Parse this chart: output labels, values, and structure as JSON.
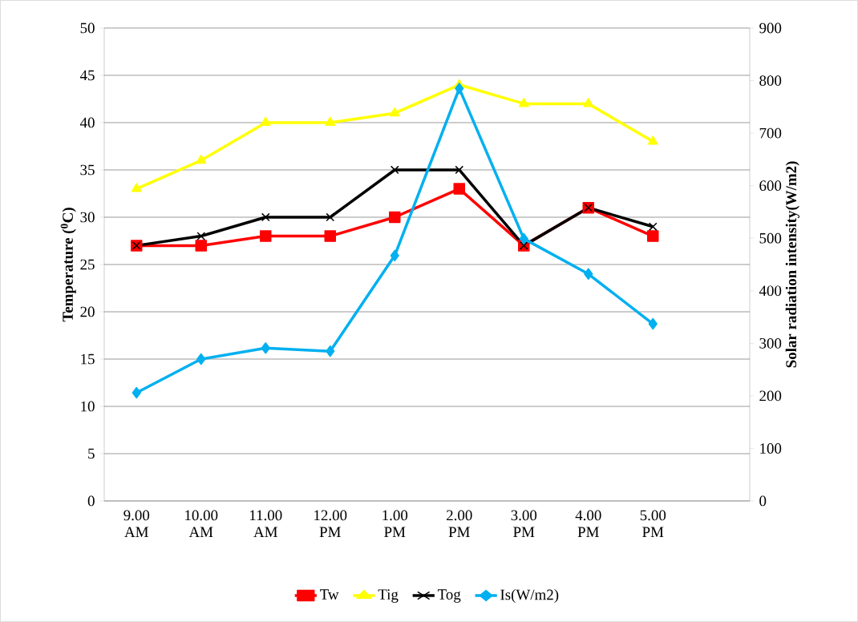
{
  "chart_data": {
    "type": "line",
    "ylabel": "Temperature ($^{0}$C)",
    "y2label": "Solar radiation intensity(W/m2)",
    "categories": [
      "9.00 AM",
      "10.00 AM",
      "11.00 AM",
      "12.00 PM",
      "1.00 PM",
      "2.00 PM",
      "3.00 PM",
      "4.00 PM",
      "5.00 PM",
      null
    ],
    "series": [
      {
        "name": "Tw",
        "color": "#ff0000",
        "marker": "square",
        "values": [
          27,
          27,
          28,
          28,
          30,
          33,
          27,
          31,
          28,
          null
        ]
      },
      {
        "name": "Tig",
        "color": "#ffff00",
        "marker": "triangle",
        "values": [
          33,
          36,
          40,
          40,
          41,
          44,
          42,
          42,
          38,
          null
        ]
      },
      {
        "name": "Tog",
        "color": "#000000",
        "marker": "cross",
        "values": [
          27,
          28,
          30,
          30,
          35,
          35,
          27,
          31,
          29,
          null
        ]
      },
      {
        "name": "Is(W/m2)",
        "color": "#00b0f0",
        "marker": "diamond",
        "axis": "y2",
        "values": [
          206,
          270,
          291,
          285,
          467,
          785,
          499,
          432,
          337,
          null
        ]
      }
    ],
    "ylim": [
      0,
      50
    ],
    "yticks": [
      0,
      5,
      10,
      15,
      20,
      25,
      30,
      35,
      40,
      45,
      50
    ],
    "y2lim": [
      0,
      900
    ],
    "y2ticks": [
      0,
      100,
      200,
      300,
      400,
      500,
      600,
      700,
      800,
      900
    ],
    "grid": "y",
    "legend": "bottom",
    "line_style": "solid"
  }
}
